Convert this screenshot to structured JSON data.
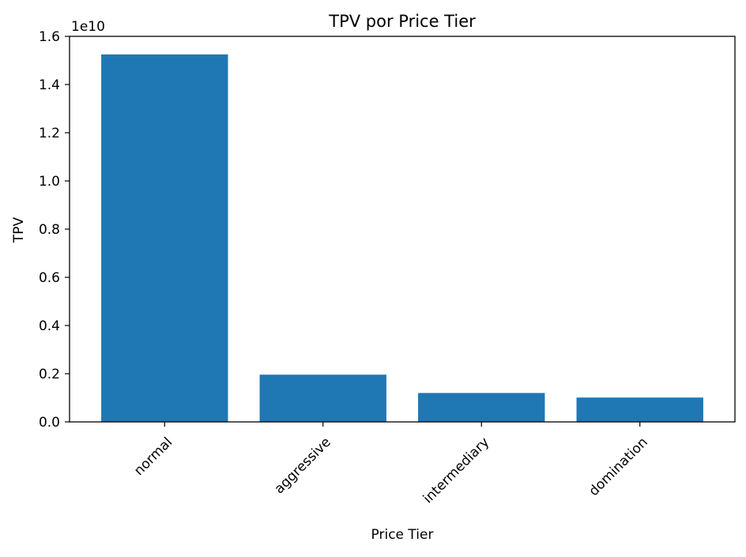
{
  "chart_data": {
    "type": "bar",
    "title": "TPV por Price Tier",
    "xlabel": "Price Tier",
    "ylabel": "TPV",
    "y_offset_text": "1e10",
    "y_scale_factor": 10000000000,
    "categories": [
      "normal",
      "aggressive",
      "intermediary",
      "domination"
    ],
    "values": [
      15250000000,
      1960000000,
      1200000000,
      1010000000
    ],
    "ylim": [
      0,
      16000000000
    ],
    "yticks": [
      0,
      2000000000,
      4000000000,
      6000000000,
      8000000000,
      10000000000,
      12000000000,
      14000000000,
      16000000000
    ],
    "ytick_labels": [
      "0.0",
      "0.2",
      "0.4",
      "0.6",
      "0.8",
      "1.0",
      "1.2",
      "1.4",
      "1.6"
    ],
    "bar_color": "#1f77b4",
    "grid": false,
    "legend": false,
    "xtick_rotation_deg": 45
  }
}
